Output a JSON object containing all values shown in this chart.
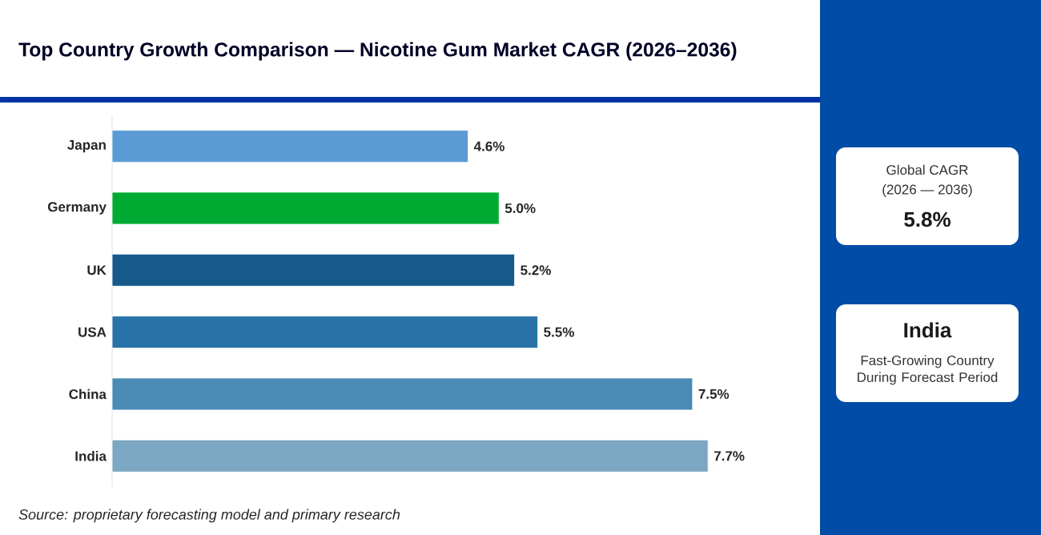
{
  "chart_data": {
    "type": "bar",
    "orientation": "horizontal",
    "title": "Top Country Growth Comparison — Nicotine Gum Market CAGR (2026–2036)",
    "categories": [
      "Japan",
      "Germany",
      "UK",
      "USA",
      "China",
      "India"
    ],
    "values": [
      4.6,
      5.0,
      5.2,
      5.5,
      7.5,
      7.7
    ],
    "value_labels": [
      "4.6%",
      "5.0%",
      "5.2%",
      "5.5%",
      "7.5%",
      "7.7%"
    ],
    "colors": [
      "#5b9bd5",
      "#00aa33",
      "#165a8c",
      "#2874a8",
      "#4a8ab5",
      "#7ba7c2"
    ],
    "annotations": [
      "Global CAGR",
      "(2026 — 2036)",
      "5.8%",
      "India",
      "Fast-Growing Country During Forecast Period",
      "Source: proprietary forecasting model and primary research"
    ]
  }
}
